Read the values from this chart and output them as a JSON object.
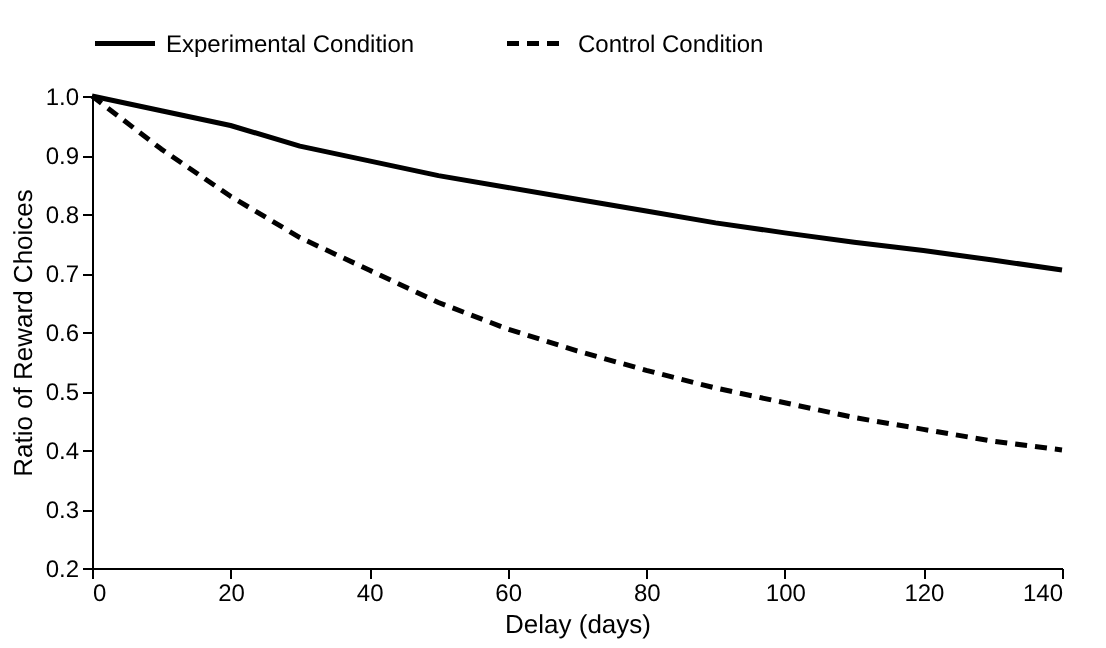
{
  "chart_data": {
    "type": "line",
    "xlabel": "Delay (days)",
    "ylabel": "Ratio of Reward Choices",
    "x": [
      0,
      10,
      20,
      30,
      40,
      50,
      60,
      70,
      80,
      90,
      100,
      110,
      120,
      130,
      140
    ],
    "series": [
      {
        "name": "Experimental Condition",
        "color": "#000000",
        "line_style": "solid",
        "values": [
          1.0,
          0.975,
          0.95,
          0.915,
          0.89,
          0.865,
          0.845,
          0.825,
          0.805,
          0.785,
          0.768,
          0.752,
          0.738,
          0.722,
          0.705
        ]
      },
      {
        "name": "Control Condition",
        "color": "#000000",
        "line_style": "dashed",
        "values": [
          1.0,
          0.91,
          0.83,
          0.76,
          0.705,
          0.65,
          0.605,
          0.568,
          0.535,
          0.505,
          0.48,
          0.455,
          0.435,
          0.415,
          0.4
        ]
      }
    ],
    "xlim": [
      0,
      140
    ],
    "xticks": [
      0,
      20,
      40,
      60,
      80,
      100,
      120,
      140
    ],
    "ylim": [
      0.2,
      1.0
    ],
    "yticks": [
      0.2,
      0.3,
      0.4,
      0.5,
      0.6,
      0.7,
      0.8,
      0.9,
      {
        "value": 1,
        "label": "1.0"
      }
    ],
    "grid": false,
    "legend": "top",
    "marker": "none"
  }
}
